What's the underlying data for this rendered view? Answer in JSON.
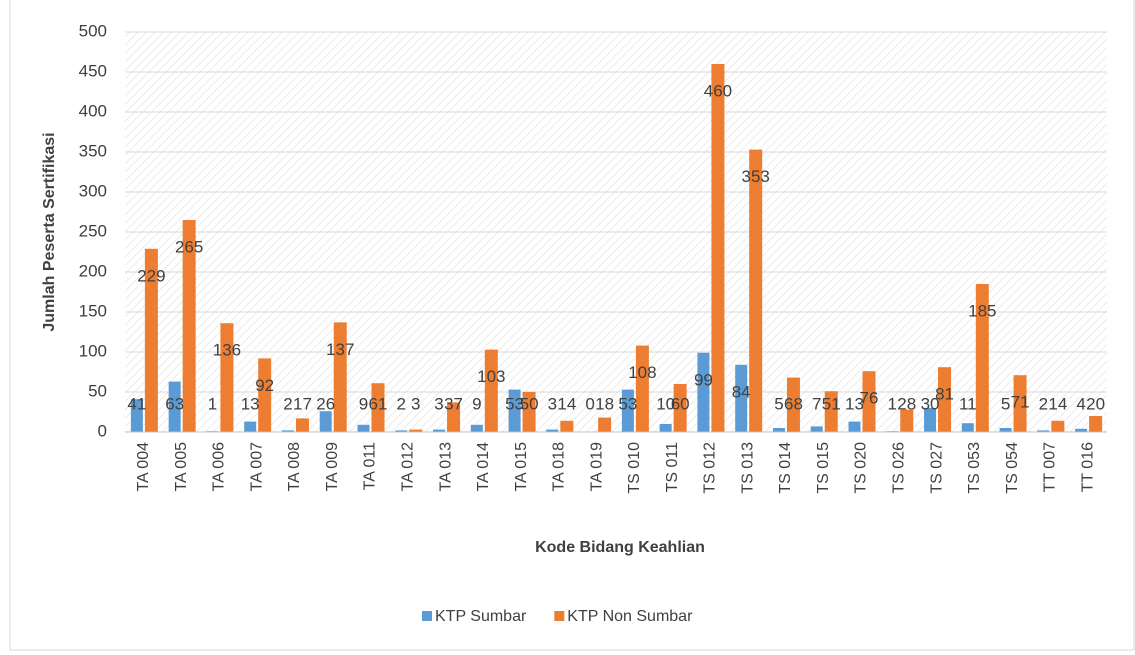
{
  "chart_data": {
    "type": "bar",
    "x_label": "Kode Bidang Keahlian",
    "y_label": "Jumlah Peserta Sertifikasi",
    "categories": [
      "TA 004",
      "TA 005",
      "TA 006",
      "TA 007",
      "TA 008",
      "TA 009",
      "TA 011",
      "TA 012",
      "TA 013",
      "TA 014",
      "TA 015",
      "TA 018",
      "TA 019",
      "TS 010",
      "TS 011",
      "TS 012",
      "TS 013",
      "TS 014",
      "TS 015",
      "TS 020",
      "TS 026",
      "TS 027",
      "TS 053",
      "TS 054",
      "TT 007",
      "TT 016"
    ],
    "series": [
      {
        "name": "KTP Sumbar",
        "color": "#5b9bd5",
        "values": [
          41,
          63,
          1,
          13,
          2,
          26,
          9,
          2,
          3,
          9,
          53,
          3,
          0,
          53,
          10,
          99,
          84,
          5,
          7,
          13,
          1,
          30,
          11,
          5,
          2,
          4
        ]
      },
      {
        "name": "KTP Non Sumbar",
        "color": "#ed7d31",
        "values": [
          229,
          265,
          136,
          92,
          17,
          137,
          61,
          3,
          37,
          103,
          50,
          14,
          18,
          108,
          60,
          460,
          353,
          68,
          51,
          76,
          28,
          81,
          185,
          71,
          14,
          20
        ]
      }
    ],
    "ylim": [
      0,
      500
    ],
    "yticks": [
      0,
      50,
      100,
      150,
      200,
      250,
      300,
      350,
      400,
      450,
      500
    ],
    "grid": true,
    "legend": "bottom"
  }
}
